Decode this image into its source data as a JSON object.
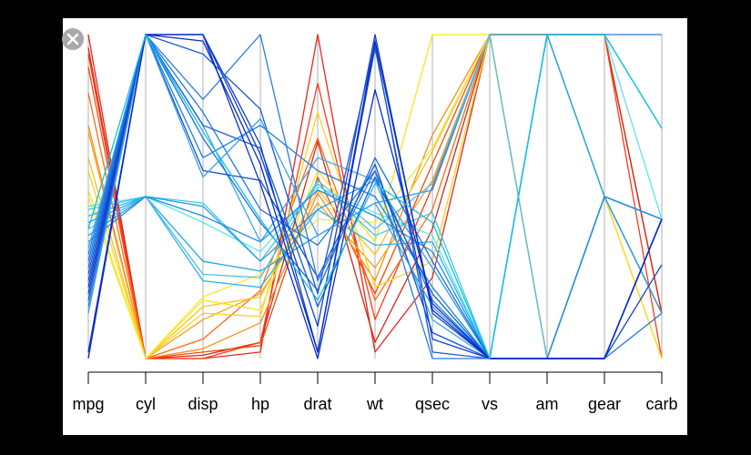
{
  "viewer": {
    "close_icon": "close-icon",
    "backdrop_color": "#000000",
    "panel_color": "#ffffff"
  },
  "chart_data": {
    "type": "parallel-coordinates",
    "axes": [
      "mpg",
      "cyl",
      "disp",
      "hp",
      "drat",
      "wt",
      "qsec",
      "vs",
      "am",
      "gear",
      "carb"
    ],
    "scale": "each axis scaled 0 (min) to 1 (max)",
    "axis_line_color": "#b0b0b0",
    "series": [
      {
        "color": "#e8251c",
        "values": [
          1.0,
          0.0,
          0.0,
          0.02,
          1.0,
          0.02,
          0.25,
          1.0,
          1.0,
          1.0,
          0.14
        ]
      },
      {
        "color": "#d22814",
        "values": [
          0.96,
          0.0,
          0.01,
          0.05,
          0.67,
          0.05,
          0.4,
          1.0,
          1.0,
          1.0,
          0.14
        ]
      },
      {
        "color": "#ff3b14",
        "values": [
          0.94,
          0.0,
          0.0,
          0.05,
          0.85,
          0.12,
          0.53,
          1.0,
          1.0,
          1.0,
          0.0
        ]
      },
      {
        "color": "#f04b0e",
        "values": [
          0.9,
          0.0,
          0.02,
          0.04,
          0.56,
          0.2,
          0.6,
          1.0,
          1.0,
          0.5,
          0.43
        ]
      },
      {
        "color": "#ff6a10",
        "values": [
          0.82,
          0.0,
          0.06,
          0.21,
          0.68,
          0.18,
          0.46,
          1.0,
          0.0,
          0.5,
          0.0
        ]
      },
      {
        "color": "#ff8c1a",
        "values": [
          0.72,
          0.0,
          0.03,
          0.11,
          0.51,
          0.24,
          0.69,
          1.0,
          1.0,
          0.5,
          0.14
        ]
      },
      {
        "color": "#f5a020",
        "values": [
          0.7,
          0.0,
          0.12,
          0.2,
          0.48,
          0.28,
          0.55,
          1.0,
          0.0,
          0.5,
          0.14
        ]
      },
      {
        "color": "#fcbf22",
        "values": [
          0.62,
          0.0,
          0.16,
          0.19,
          0.52,
          0.32,
          0.64,
          1.0,
          0.0,
          0.5,
          0.14
        ]
      },
      {
        "color": "#ffd21e",
        "values": [
          0.58,
          0.0,
          0.14,
          0.13,
          0.76,
          0.22,
          0.3,
          1.0,
          1.0,
          0.5,
          0.14
        ]
      },
      {
        "color": "#ffe31a",
        "values": [
          0.52,
          0.0,
          0.18,
          0.15,
          0.58,
          0.36,
          1.0,
          1.0,
          0.0,
          0.5,
          0.0
        ]
      },
      {
        "color": "#f3ea3a",
        "values": [
          0.5,
          0.0,
          0.19,
          0.26,
          0.43,
          0.42,
          0.65,
          1.0,
          1.0,
          0.5,
          0.14
        ]
      },
      {
        "color": "#5ee6e6",
        "values": [
          0.47,
          0.5,
          0.42,
          0.33,
          0.53,
          0.45,
          0.38,
          0.0,
          1.0,
          1.0,
          0.43
        ]
      },
      {
        "color": "#3cc8f0",
        "values": [
          0.46,
          0.5,
          0.48,
          0.3,
          0.54,
          0.38,
          0.45,
          0.0,
          1.0,
          0.5,
          0.43
        ]
      },
      {
        "color": "#28b4f0",
        "values": [
          0.44,
          0.5,
          0.24,
          0.22,
          0.46,
          0.35,
          0.36,
          0.0,
          0.0,
          0.5,
          0.14
        ]
      },
      {
        "color": "#1ea6ec",
        "values": [
          0.42,
          0.5,
          0.3,
          0.27,
          0.38,
          0.48,
          0.52,
          1.0,
          1.0,
          0.5,
          0.43
        ]
      },
      {
        "color": "#4fbfe8",
        "values": [
          0.4,
          0.5,
          0.26,
          0.25,
          0.55,
          0.4,
          0.54,
          1.0,
          0.0,
          0.5,
          0.43
        ]
      },
      {
        "color": "#2a9aec",
        "values": [
          0.38,
          0.5,
          0.47,
          0.3,
          0.46,
          0.55,
          0.28,
          0.0,
          0.0,
          0.5,
          0.14
        ]
      },
      {
        "color": "#1c8ce8",
        "values": [
          0.36,
          0.5,
          0.44,
          0.36,
          0.52,
          0.44,
          0.33,
          0.0,
          0.0,
          0.5,
          0.43
        ]
      },
      {
        "color": "#38a8f4",
        "values": [
          0.34,
          1.0,
          0.72,
          0.36,
          0.62,
          0.55,
          0.12,
          0.0,
          0.0,
          0.0,
          0.43
        ]
      },
      {
        "color": "#1482e8",
        "values": [
          0.32,
          1.0,
          0.62,
          0.72,
          0.58,
          0.5,
          0.22,
          0.0,
          0.0,
          0.0,
          0.43
        ]
      },
      {
        "color": "#1e78e6",
        "values": [
          0.3,
          1.0,
          0.76,
          0.46,
          0.35,
          0.58,
          0.18,
          0.0,
          0.0,
          0.0,
          0.14
        ]
      },
      {
        "color": "#1a6ee0",
        "values": [
          0.28,
          1.0,
          0.68,
          0.42,
          0.21,
          0.62,
          0.3,
          0.0,
          0.0,
          0.0,
          0.43
        ]
      },
      {
        "color": "#145ed8",
        "values": [
          0.26,
          1.0,
          0.72,
          0.65,
          0.16,
          0.56,
          0.2,
          0.0,
          0.0,
          0.0,
          0.43
        ]
      },
      {
        "color": "#1650d4",
        "values": [
          0.24,
          1.0,
          0.58,
          0.55,
          0.25,
          0.6,
          0.08,
          0.0,
          0.0,
          0.0,
          0.43
        ]
      },
      {
        "color": "#0e40d0",
        "values": [
          0.22,
          1.0,
          1.0,
          0.66,
          0.02,
          0.96,
          0.06,
          0.0,
          0.0,
          0.0,
          0.29
        ]
      },
      {
        "color": "#1040cc",
        "values": [
          0.2,
          1.0,
          1.0,
          0.63,
          0.1,
          1.0,
          0.14,
          0.0,
          0.0,
          0.0,
          0.43
        ]
      },
      {
        "color": "#1a5ad8",
        "values": [
          0.18,
          1.0,
          0.94,
          0.77,
          0.2,
          0.97,
          0.02,
          0.0,
          0.0,
          0.0,
          0.43
        ]
      },
      {
        "color": "#2b7be0",
        "values": [
          0.16,
          1.0,
          0.8,
          1.0,
          0.24,
          0.58,
          0.0,
          0.0,
          1.0,
          1.0,
          1.0
        ]
      },
      {
        "color": "#3aa0ea",
        "values": [
          0.14,
          1.0,
          0.56,
          0.74,
          0.38,
          0.48,
          0.16,
          0.0,
          1.0,
          1.0,
          0.71
        ]
      },
      {
        "color": "#0a2fd0",
        "values": [
          0.02,
          1.0,
          1.0,
          0.54,
          0.0,
          0.83,
          0.17,
          0.0,
          0.0,
          0.0,
          0.43
        ]
      },
      {
        "color": "#0828c8",
        "values": [
          0.0,
          1.0,
          0.98,
          0.6,
          0.02,
          0.98,
          0.15,
          0.0,
          0.0,
          0.0,
          0.43
        ]
      },
      {
        "color": "#12c0e0",
        "values": [
          0.4,
          1.0,
          0.7,
          0.43,
          0.18,
          0.54,
          0.42,
          0.0,
          1.0,
          1.0,
          0.71
        ]
      }
    ]
  }
}
